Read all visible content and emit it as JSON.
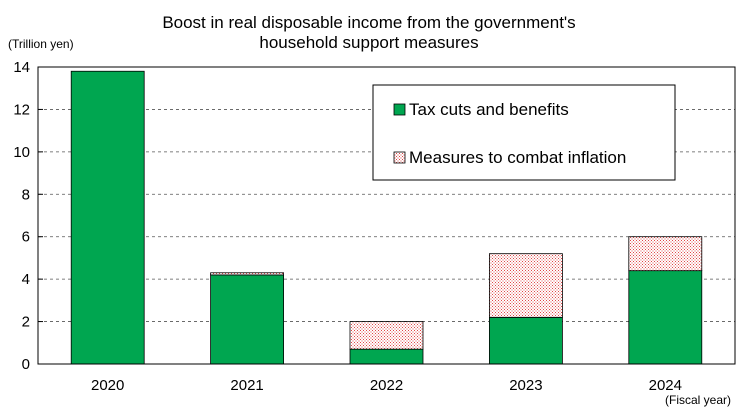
{
  "chart_data": {
    "type": "bar",
    "stacked": true,
    "title_line1": "Boost in real disposable income from the government's",
    "title_line2": "household support measures",
    "ylabel": "(Trillion yen)",
    "xlabel": "(Fiscal year)",
    "categories": [
      "2020",
      "2021",
      "2022",
      "2023",
      "2024"
    ],
    "series": [
      {
        "name": "Tax cuts and benefits",
        "values": [
          13.8,
          4.2,
          0.7,
          2.2,
          4.4
        ],
        "color": "#00a650"
      },
      {
        "name": "Measures to combat inflation",
        "values": [
          0.0,
          0.1,
          1.3,
          3.0,
          1.6
        ],
        "color": "#ffffff",
        "pattern": "red-dots"
      }
    ],
    "ylim": [
      0,
      14
    ],
    "yticks": [
      "0",
      "2",
      "4",
      "6",
      "8",
      "10",
      "12",
      "14"
    ],
    "grid": true,
    "legend_position": "top-right"
  }
}
